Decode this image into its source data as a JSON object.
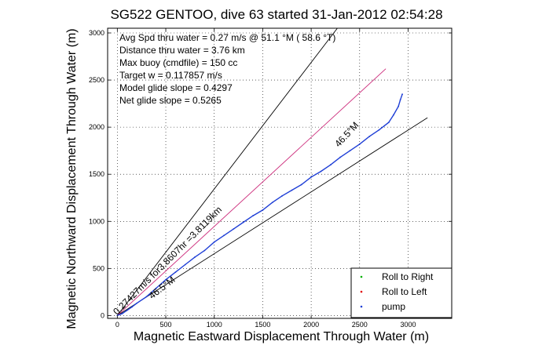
{
  "chart_data": {
    "type": "line",
    "title": "SG522 GENTOO, dive 63 started 31-Jan-2012 02:54:28",
    "xlabel": "Magnetic Eastward Displacement Through Water (m)",
    "ylabel": "Magnetic Northward Displacement Through Water (m)",
    "xlim": [
      -100,
      3450
    ],
    "ylim": [
      -30,
      3050
    ],
    "xticks": [
      0,
      500,
      1000,
      1500,
      2000,
      2500,
      3000
    ],
    "yticks": [
      0,
      500,
      1000,
      1500,
      2000,
      2500,
      3000
    ],
    "grid": true,
    "info_lines": [
      "Avg Spd thru water =  0.27 m/s @  51.1 °M ( 58.6 °T)",
      "Distance thru water =  3.76 km",
      "Max buoy (cmdfile) = 150 cc",
      "Target w = 0.117857 m/s",
      "Model glide slope = 0.4297",
      "Net glide slope = 0.5265"
    ],
    "annotations": [
      {
        "text": "0.27427m/s for3.8607hr =3.8119km",
        "x": 540,
        "y": 560,
        "angle": -45
      },
      {
        "text": "46.5°M",
        "x": 2390,
        "y": 1900,
        "angle": -47
      },
      {
        "text": "46.5°M",
        "x": 480,
        "y": 270,
        "angle": -38
      }
    ],
    "reference_lines": [
      {
        "name": "upper bound",
        "color": "#000000",
        "x": [
          0,
          2270
        ],
        "y": [
          0,
          3050
        ]
      },
      {
        "name": "lower bound",
        "color": "#000000",
        "x": [
          0,
          3200
        ],
        "y": [
          0,
          2100
        ]
      },
      {
        "name": "mean heading",
        "color": "#cc2a7a",
        "x": [
          0,
          2770
        ],
        "y": [
          0,
          2620
        ]
      }
    ],
    "track": {
      "name": "dive track",
      "color": "#1f3fd6",
      "x": [
        0,
        50,
        100,
        150,
        200,
        300,
        400,
        500,
        600,
        700,
        800,
        900,
        1000,
        1100,
        1200,
        1300,
        1400,
        1500,
        1600,
        1700,
        1800,
        1900,
        2000,
        2100,
        2200,
        2300,
        2400,
        2500,
        2600,
        2700,
        2800,
        2850,
        2900,
        2920,
        2940
      ],
      "y": [
        0,
        20,
        55,
        90,
        130,
        200,
        290,
        380,
        460,
        540,
        620,
        690,
        780,
        850,
        920,
        990,
        1060,
        1120,
        1200,
        1270,
        1330,
        1390,
        1470,
        1530,
        1600,
        1680,
        1750,
        1820,
        1900,
        1970,
        2050,
        2130,
        2220,
        2290,
        2350
      ]
    },
    "legend": {
      "placement": "bottom-right",
      "items": [
        {
          "label": "Roll to Right",
          "color": "#00b000"
        },
        {
          "label": "Roll to Left",
          "color": "#e00000"
        },
        {
          "label": "pump",
          "color": "#1f3fd6"
        }
      ]
    }
  }
}
